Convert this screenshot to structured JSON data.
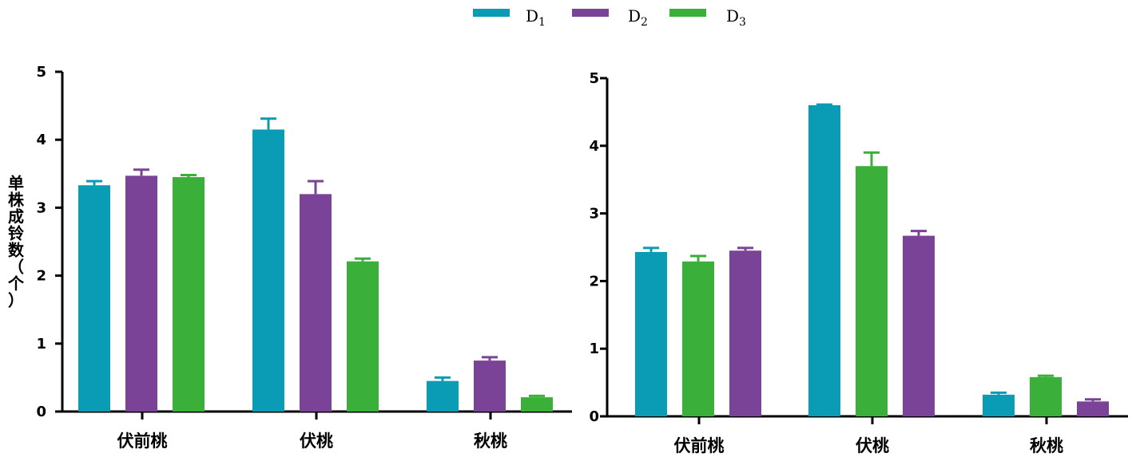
{
  "legend": [
    {
      "name": "D",
      "sub": "1",
      "color": "#0a9bb5"
    },
    {
      "name": "D",
      "sub": "2",
      "color": "#7b4397"
    },
    {
      "name": "D",
      "sub": "3",
      "color": "#3aaf3a"
    }
  ],
  "chart_data": [
    {
      "type": "bar",
      "ylabel": "单株成铃数（个）",
      "ylim": [
        0,
        5
      ],
      "yticks": [
        "0",
        "1",
        "2",
        "3",
        "4",
        "5"
      ],
      "categories": [
        "伏前桃",
        "伏桃",
        "秋桃"
      ],
      "series": [
        {
          "name": "D1",
          "color": "#0a9bb5",
          "values": [
            3.33,
            4.15,
            0.45
          ],
          "errors": [
            0.06,
            0.16,
            0.05
          ]
        },
        {
          "name": "D2",
          "color": "#7b4397",
          "values": [
            3.47,
            3.2,
            0.75
          ],
          "errors": [
            0.09,
            0.19,
            0.05
          ]
        },
        {
          "name": "D3",
          "color": "#3aaf3a",
          "values": [
            3.45,
            2.21,
            0.21
          ],
          "errors": [
            0.03,
            0.04,
            0.02
          ]
        }
      ]
    },
    {
      "type": "bar",
      "ylabel": "",
      "ylim": [
        0,
        5
      ],
      "yticks": [
        "0",
        "1",
        "2",
        "3",
        "4",
        "5"
      ],
      "categories": [
        "伏前桃",
        "伏桃",
        "秋桃"
      ],
      "series": [
        {
          "name": "D1",
          "color": "#0a9bb5",
          "values": [
            2.43,
            4.6,
            0.32
          ],
          "errors": [
            0.06,
            0.01,
            0.03
          ]
        },
        {
          "name": "D3",
          "color": "#3aaf3a",
          "values": [
            2.29,
            3.7,
            0.58
          ],
          "errors": [
            0.08,
            0.2,
            0.02
          ]
        },
        {
          "name": "D2",
          "color": "#7b4397",
          "values": [
            2.45,
            2.67,
            0.22
          ],
          "errors": [
            0.04,
            0.07,
            0.03
          ]
        }
      ]
    }
  ]
}
